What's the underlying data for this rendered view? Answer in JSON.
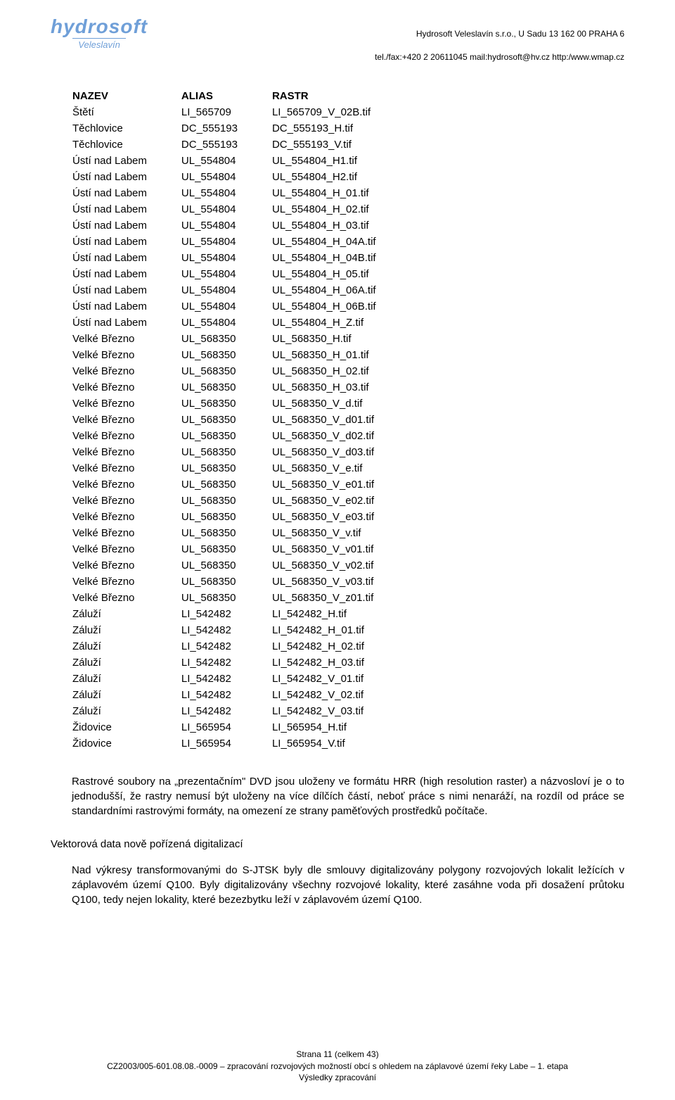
{
  "header": {
    "company_line": "Hydrosoft Veleslavín s.r.o.,  U Sadu 13  162 00 PRAHA 6",
    "contact_line": "tel./fax:+420 2 20611045  mail:hydrosoft@hv.cz  http:/www.wmap.cz",
    "logo_main": "hydrosoft",
    "logo_sub": "Veleslavín"
  },
  "table": {
    "headers": [
      "NAZEV",
      "ALIAS",
      "RASTR"
    ],
    "rows": [
      [
        "Štětí",
        "LI_565709",
        "LI_565709_V_02B.tif"
      ],
      [
        "Těchlovice",
        "DC_555193",
        "DC_555193_H.tif"
      ],
      [
        "Těchlovice",
        "DC_555193",
        "DC_555193_V.tif"
      ],
      [
        "Ústí nad Labem",
        "UL_554804",
        "UL_554804_H1.tif"
      ],
      [
        "Ústí nad Labem",
        "UL_554804",
        "UL_554804_H2.tif"
      ],
      [
        "Ústí nad Labem",
        "UL_554804",
        "UL_554804_H_01.tif"
      ],
      [
        "Ústí nad Labem",
        "UL_554804",
        "UL_554804_H_02.tif"
      ],
      [
        "Ústí nad Labem",
        "UL_554804",
        "UL_554804_H_03.tif"
      ],
      [
        "Ústí nad Labem",
        "UL_554804",
        "UL_554804_H_04A.tif"
      ],
      [
        "Ústí nad Labem",
        "UL_554804",
        "UL_554804_H_04B.tif"
      ],
      [
        "Ústí nad Labem",
        "UL_554804",
        "UL_554804_H_05.tif"
      ],
      [
        "Ústí nad Labem",
        "UL_554804",
        "UL_554804_H_06A.tif"
      ],
      [
        "Ústí nad Labem",
        "UL_554804",
        "UL_554804_H_06B.tif"
      ],
      [
        "Ústí nad Labem",
        "UL_554804",
        "UL_554804_H_Z.tif"
      ],
      [
        "Velké Březno",
        "UL_568350",
        "UL_568350_H.tif"
      ],
      [
        "Velké Březno",
        "UL_568350",
        "UL_568350_H_01.tif"
      ],
      [
        "Velké Březno",
        "UL_568350",
        "UL_568350_H_02.tif"
      ],
      [
        "Velké Březno",
        "UL_568350",
        "UL_568350_H_03.tif"
      ],
      [
        "Velké Březno",
        "UL_568350",
        "UL_568350_V_d.tif"
      ],
      [
        "Velké Březno",
        "UL_568350",
        "UL_568350_V_d01.tif"
      ],
      [
        "Velké Březno",
        "UL_568350",
        "UL_568350_V_d02.tif"
      ],
      [
        "Velké Březno",
        "UL_568350",
        "UL_568350_V_d03.tif"
      ],
      [
        "Velké Březno",
        "UL_568350",
        "UL_568350_V_e.tif"
      ],
      [
        "Velké Březno",
        "UL_568350",
        "UL_568350_V_e01.tif"
      ],
      [
        "Velké Březno",
        "UL_568350",
        "UL_568350_V_e02.tif"
      ],
      [
        "Velké Březno",
        "UL_568350",
        "UL_568350_V_e03.tif"
      ],
      [
        "Velké Březno",
        "UL_568350",
        "UL_568350_V_v.tif"
      ],
      [
        "Velké Březno",
        "UL_568350",
        "UL_568350_V_v01.tif"
      ],
      [
        "Velké Březno",
        "UL_568350",
        "UL_568350_V_v02.tif"
      ],
      [
        "Velké Březno",
        "UL_568350",
        "UL_568350_V_v03.tif"
      ],
      [
        "Velké Březno",
        "UL_568350",
        "UL_568350_V_z01.tif"
      ],
      [
        "Záluží",
        "LI_542482",
        "LI_542482_H.tif"
      ],
      [
        "Záluží",
        "LI_542482",
        "LI_542482_H_01.tif"
      ],
      [
        "Záluží",
        "LI_542482",
        "LI_542482_H_02.tif"
      ],
      [
        "Záluží",
        "LI_542482",
        "LI_542482_H_03.tif"
      ],
      [
        "Záluží",
        "LI_542482",
        "LI_542482_V_01.tif"
      ],
      [
        "Záluží",
        "LI_542482",
        "LI_542482_V_02.tif"
      ],
      [
        "Záluží",
        "LI_542482",
        "LI_542482_V_03.tif"
      ],
      [
        "Židovice",
        "LI_565954",
        "LI_565954_H.tif"
      ],
      [
        "Židovice",
        "LI_565954",
        "LI_565954_V.tif"
      ]
    ]
  },
  "body": {
    "para1": "Rastrové soubory na „prezentačním\" DVD jsou uloženy ve formátu HRR (high resolution raster) a názvosloví je o to jednodušší, že rastry nemusí být uloženy na více dílčích částí, neboť práce s nimi nenaráží, na rozdíl od práce se standardními rastrovými formáty, na omezení ze strany paměťových prostředků počítače.",
    "section_head": "Vektorová data nově pořízená digitalizací",
    "para2": "Nad výkresy transformovanými do S-JTSK byly dle smlouvy digitalizovány polygony rozvojových lokalit ležících v záplavovém území Q100. Byly digitalizovány všechny rozvojové lokality, které zasáhne voda při dosažení průtoku Q100, tedy nejen lokality, které bezezbytku leží v záplavovém území Q100."
  },
  "footer": {
    "line1": "Strana 11 (celkem 43)",
    "line2": "CZ2003/005-601.08.08.-0009 – zpracování rozvojových možností obcí s ohledem na záplavové území řeky Labe – 1. etapa",
    "line3": "Výsledky zpracování"
  }
}
